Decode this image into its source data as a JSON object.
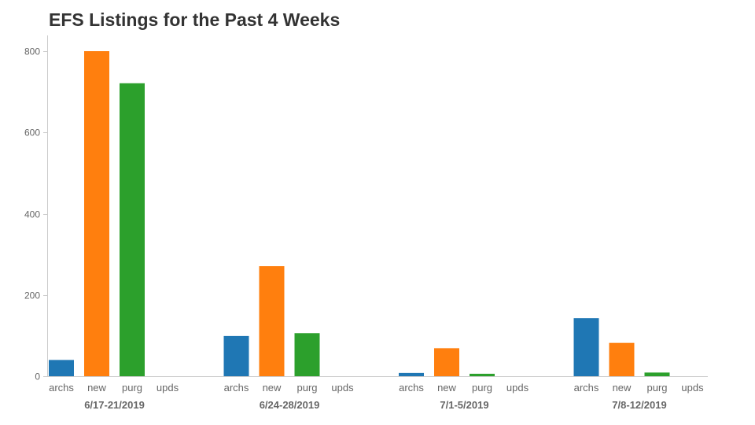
{
  "chart_data": {
    "type": "bar",
    "title": "EFS Listings for the Past 4 Weeks",
    "xlabel": "",
    "ylabel": "",
    "ylim": [
      0,
      800
    ],
    "yticks": [
      0,
      200,
      400,
      600,
      800
    ],
    "grid": false,
    "legend": "none",
    "categories": [
      "archs",
      "new",
      "purg",
      "upds"
    ],
    "category_colors": {
      "archs": "#1f77b4",
      "new": "#ff7f0e",
      "purg": "#2ca02c",
      "upds": "#d62728"
    },
    "groups": [
      {
        "label": "6/17-21/2019",
        "values": [
          40,
          800,
          721,
          0
        ]
      },
      {
        "label": "6/24-28/2019",
        "values": [
          99,
          271,
          106,
          0
        ]
      },
      {
        "label": "7/1-5/2019",
        "values": [
          8,
          69,
          6,
          0
        ]
      },
      {
        "label": "7/8-12/2019",
        "values": [
          143,
          82,
          9,
          0
        ]
      }
    ]
  }
}
